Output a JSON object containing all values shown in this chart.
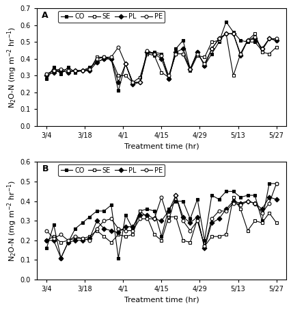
{
  "panel_A": {
    "label": "A",
    "ylim": [
      0,
      0.7
    ],
    "yticks": [
      0,
      0.1,
      0.2,
      0.3,
      0.4,
      0.5,
      0.6,
      0.7
    ],
    "series": {
      "CO": {
        "marker": "s",
        "filled": true,
        "values": [
          0.28,
          0.35,
          0.31,
          0.35,
          0.32,
          0.33,
          0.35,
          0.38,
          0.4,
          0.4,
          0.21,
          0.37,
          0.26,
          0.26,
          0.43,
          0.44,
          0.43,
          0.28,
          0.46,
          0.51,
          0.34,
          0.44,
          0.36,
          0.43,
          0.5,
          0.62,
          0.56,
          0.51,
          0.5,
          0.5,
          0.45,
          0.52,
          0.51
        ]
      },
      "SE": {
        "marker": "s",
        "filled": false,
        "values": [
          0.31,
          0.33,
          0.33,
          0.32,
          0.33,
          0.33,
          0.33,
          0.41,
          0.41,
          0.4,
          0.3,
          0.3,
          0.26,
          0.29,
          0.43,
          0.42,
          0.32,
          0.29,
          0.43,
          0.43,
          0.33,
          0.42,
          0.41,
          0.5,
          0.51,
          0.55,
          0.3,
          0.43,
          0.51,
          0.55,
          0.44,
          0.43,
          0.47
        ]
      },
      "PL": {
        "marker": "D",
        "filled": true,
        "values": [
          0.3,
          0.32,
          0.33,
          0.32,
          0.33,
          0.33,
          0.33,
          0.38,
          0.4,
          0.4,
          0.26,
          0.37,
          0.25,
          0.26,
          0.44,
          0.43,
          0.4,
          0.28,
          0.44,
          0.46,
          0.34,
          0.44,
          0.36,
          0.46,
          0.52,
          0.55,
          0.55,
          0.42,
          0.51,
          0.52,
          0.46,
          0.52,
          0.51
        ]
      },
      "PE": {
        "marker": "o",
        "filled": false,
        "values": [
          0.31,
          0.33,
          0.34,
          0.33,
          0.33,
          0.33,
          0.34,
          0.4,
          0.41,
          0.41,
          0.47,
          0.37,
          0.26,
          0.26,
          0.45,
          0.43,
          0.42,
          0.3,
          0.43,
          0.43,
          0.34,
          0.43,
          0.37,
          0.46,
          0.52,
          0.55,
          0.55,
          0.43,
          0.51,
          0.53,
          0.46,
          0.52,
          0.52
        ]
      }
    }
  },
  "panel_B": {
    "label": "B",
    "ylim": [
      0,
      0.6
    ],
    "yticks": [
      0,
      0.1,
      0.2,
      0.3,
      0.4,
      0.5,
      0.6
    ],
    "series": {
      "CO": {
        "marker": "s",
        "filled": true,
        "values": [
          0.16,
          0.28,
          0.11,
          0.19,
          0.26,
          0.29,
          0.32,
          0.35,
          0.35,
          0.38,
          0.11,
          0.33,
          0.26,
          0.35,
          0.36,
          0.35,
          0.22,
          0.36,
          0.4,
          0.4,
          0.31,
          0.41,
          0.2,
          0.43,
          0.41,
          0.45,
          0.45,
          0.42,
          0.43,
          0.43,
          0.3,
          0.49,
          0.49
        ]
      },
      "SE": {
        "marker": "s",
        "filled": false,
        "values": [
          0.2,
          0.22,
          0.19,
          0.2,
          0.21,
          0.21,
          0.22,
          0.25,
          0.22,
          0.19,
          0.23,
          0.22,
          0.23,
          0.35,
          0.32,
          0.23,
          0.2,
          0.32,
          0.32,
          0.2,
          0.19,
          0.31,
          0.17,
          0.22,
          0.22,
          0.23,
          0.42,
          0.36,
          0.25,
          0.3,
          0.29,
          0.34,
          0.29
        ]
      },
      "PL": {
        "marker": "D",
        "filled": true,
        "values": [
          0.2,
          0.2,
          0.11,
          0.19,
          0.2,
          0.2,
          0.21,
          0.3,
          0.26,
          0.25,
          0.24,
          0.27,
          0.27,
          0.33,
          0.33,
          0.31,
          0.3,
          0.35,
          0.43,
          0.32,
          0.29,
          0.32,
          0.16,
          0.29,
          0.31,
          0.36,
          0.4,
          0.39,
          0.4,
          0.39,
          0.36,
          0.42,
          0.41
        ]
      },
      "PE": {
        "marker": "o",
        "filled": false,
        "values": [
          0.25,
          0.21,
          0.23,
          0.2,
          0.22,
          0.21,
          0.2,
          0.26,
          0.3,
          0.31,
          0.26,
          0.25,
          0.25,
          0.31,
          0.31,
          0.31,
          0.42,
          0.3,
          0.43,
          0.3,
          0.25,
          0.3,
          0.17,
          0.31,
          0.35,
          0.35,
          0.39,
          0.38,
          0.4,
          0.39,
          0.34,
          0.39,
          0.49
        ]
      }
    }
  },
  "x_tick_labels": [
    "3/4",
    "3/18",
    "4/1",
    "4/15",
    "4/29",
    "5/13",
    "5/27"
  ],
  "major_tick_indices": [
    0,
    2,
    4,
    6,
    8,
    10,
    12
  ],
  "n_points": 33,
  "x_range": [
    0,
    12
  ],
  "xlabel": "Treatment time (hr)",
  "ylabel": "N$_2$O-N (mg m$^{-2}$ hr$^{-1}$)",
  "legend_order": [
    "CO",
    "SE",
    "PL",
    "PE"
  ],
  "marker_size": 3.5,
  "line_width": 0.8,
  "font_size_tick": 7,
  "font_size_label": 8,
  "font_size_legend": 7,
  "font_size_panel_label": 9
}
